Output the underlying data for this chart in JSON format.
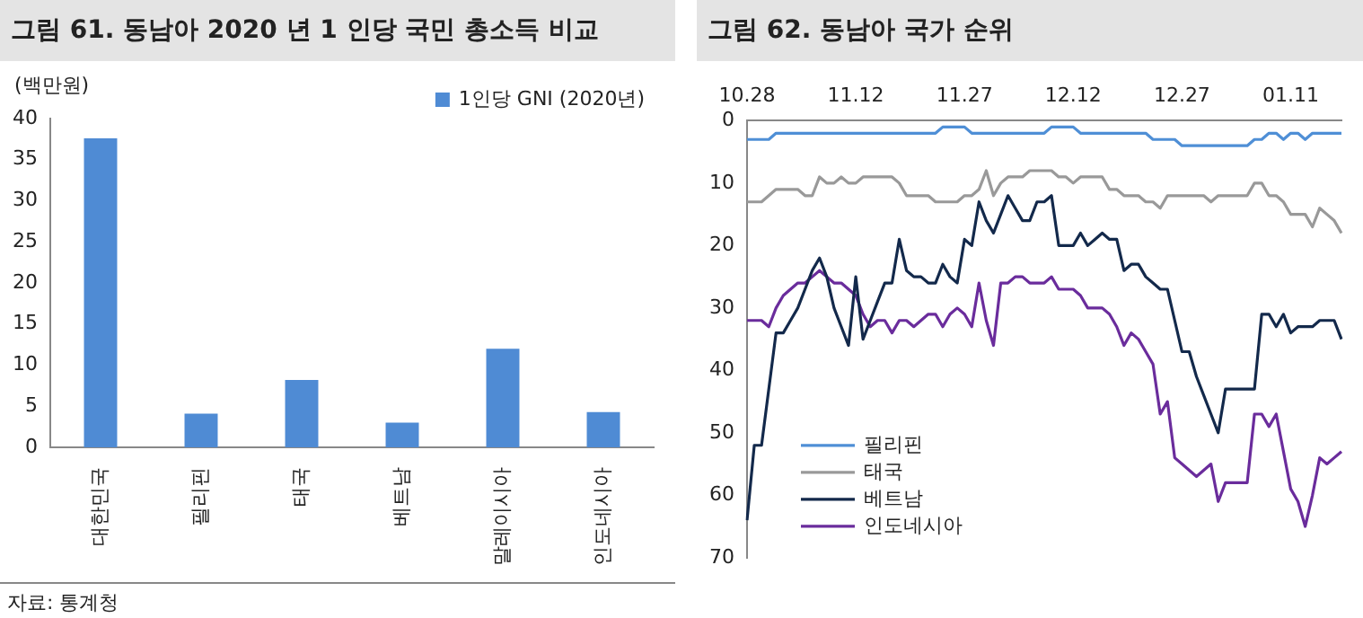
{
  "chart_data": [
    {
      "type": "bar",
      "title": "그림 61. 동남아 2020 년 1 인당 국민 총소득 비교",
      "ylabel": "(백만원)",
      "categories": [
        "대한민국",
        "필리핀",
        "태국",
        "베트남",
        "말레이시아",
        "인도네시아"
      ],
      "series": [
        {
          "name": "1인당 GNI (2020년)",
          "color": "#4f8bd4",
          "values": [
            37.6,
            4.1,
            8.2,
            3.0,
            12.0,
            4.3
          ]
        }
      ],
      "ylim": [
        0,
        40
      ],
      "yticks": [
        0,
        5,
        10,
        15,
        20,
        25,
        30,
        35,
        40
      ],
      "legend": "top right",
      "annotations": [
        "자료: 통계청"
      ]
    },
    {
      "type": "line",
      "title": "그림 62. 동남아 국가 순위",
      "categories": [
        "10.28",
        null,
        null,
        null,
        null,
        null,
        null,
        null,
        null,
        null,
        null,
        null,
        null,
        null,
        null,
        "11.12",
        null,
        null,
        null,
        null,
        null,
        null,
        null,
        null,
        null,
        null,
        null,
        null,
        null,
        null,
        "11.27",
        null,
        null,
        null,
        null,
        null,
        null,
        null,
        null,
        null,
        null,
        null,
        null,
        null,
        null,
        "12.12",
        null,
        null,
        null,
        null,
        null,
        null,
        null,
        null,
        null,
        null,
        null,
        null,
        null,
        null,
        "12.27",
        null,
        null,
        null,
        null,
        null,
        null,
        null,
        null,
        null,
        null,
        null,
        null,
        null,
        null,
        "01.11",
        null,
        null,
        null,
        null,
        null,
        null,
        null
      ],
      "ylim": [
        70,
        0
      ],
      "yticks": [
        0,
        10,
        20,
        30,
        40,
        50,
        60,
        70
      ],
      "legend": "bottom left",
      "marker": "none",
      "series": [
        {
          "name": "필리핀",
          "color": "#4f8fd6",
          "values": [
            3,
            3,
            3,
            3,
            2,
            2,
            2,
            2,
            2,
            2,
            2,
            2,
            2,
            2,
            2,
            2,
            2,
            2,
            2,
            2,
            2,
            2,
            2,
            2,
            2,
            2,
            2,
            1,
            1,
            1,
            1,
            2,
            2,
            2,
            2,
            2,
            2,
            2,
            2,
            2,
            2,
            2,
            1,
            1,
            1,
            1,
            2,
            2,
            2,
            2,
            2,
            2,
            2,
            2,
            2,
            2,
            3,
            3,
            3,
            3,
            4,
            4,
            4,
            4,
            4,
            4,
            4,
            4,
            4,
            4,
            3,
            3,
            2,
            2,
            3,
            2,
            2,
            3,
            2,
            2,
            2,
            2,
            2
          ]
        },
        {
          "name": "태국",
          "color": "#999999",
          "values": [
            13,
            13,
            13,
            12,
            11,
            11,
            11,
            11,
            12,
            12,
            9,
            10,
            10,
            9,
            10,
            10,
            9,
            9,
            9,
            9,
            9,
            10,
            12,
            12,
            12,
            12,
            13,
            13,
            13,
            13,
            12,
            12,
            11,
            8,
            12,
            10,
            9,
            9,
            9,
            8,
            8,
            8,
            8,
            9,
            9,
            10,
            9,
            9,
            9,
            9,
            11,
            11,
            12,
            12,
            12,
            13,
            13,
            14,
            12,
            12,
            12,
            12,
            12,
            12,
            13,
            12,
            12,
            12,
            12,
            12,
            10,
            10,
            12,
            12,
            13,
            15,
            15,
            15,
            17,
            14,
            15,
            16,
            18
          ]
        },
        {
          "name": "베트남",
          "color": "#13294b",
          "values": [
            64,
            52,
            52,
            43,
            34,
            34,
            32,
            30,
            27,
            24,
            22,
            25,
            30,
            33,
            36,
            25,
            35,
            32,
            29,
            26,
            26,
            19,
            24,
            25,
            25,
            26,
            26,
            23,
            25,
            26,
            19,
            20,
            13,
            16,
            18,
            15,
            12,
            14,
            16,
            16,
            13,
            13,
            12,
            20,
            20,
            20,
            18,
            20,
            19,
            18,
            19,
            19,
            24,
            23,
            23,
            25,
            26,
            27,
            27,
            32,
            37,
            37,
            41,
            44,
            47,
            50,
            43,
            43,
            43,
            43,
            43,
            31,
            31,
            33,
            31,
            34,
            33,
            33,
            33,
            32,
            32,
            32,
            35
          ]
        },
        {
          "name": "인도네시아",
          "color": "#6a2c9c",
          "values": [
            32,
            32,
            32,
            33,
            30,
            28,
            27,
            26,
            26,
            25,
            24,
            25,
            26,
            26,
            27,
            28,
            31,
            33,
            32,
            32,
            34,
            32,
            32,
            33,
            32,
            31,
            31,
            33,
            31,
            30,
            31,
            33,
            26,
            32,
            36,
            26,
            26,
            25,
            25,
            26,
            26,
            26,
            25,
            27,
            27,
            27,
            28,
            30,
            30,
            30,
            31,
            33,
            36,
            34,
            35,
            37,
            39,
            47,
            45,
            54,
            55,
            56,
            57,
            56,
            55,
            61,
            58,
            58,
            58,
            58,
            47,
            47,
            49,
            47,
            53,
            59,
            61,
            65,
            60,
            54,
            55,
            54,
            53
          ]
        }
      ]
    }
  ]
}
